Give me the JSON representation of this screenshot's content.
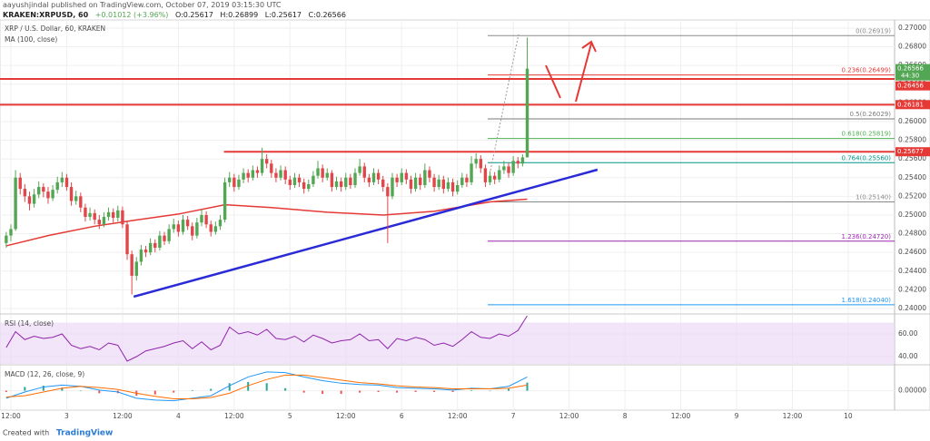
{
  "header": {
    "publisher": "aayushjindal published on TradingView.com, October 07, 2019 03:15:30 UTC",
    "symbol": "KRAKEN:XRPUSD, 60",
    "change": "+0.01012 (+3.96%)",
    "ohlc": [
      "O:0.25617",
      "H:0.26899",
      "L:0.25617",
      "C:0.26566"
    ]
  },
  "chart_data": [
    {
      "type": "candlestick",
      "title": "XRP / U.S. Dollar, 60, KRAKEN",
      "xlim": [
        9.66,
        201.97
      ],
      "ylim": [
        0.23951,
        0.27087
      ],
      "xticks": [
        {
          "value": 12,
          "label": "12:00"
        },
        {
          "value": 24,
          "label": "3"
        },
        {
          "value": 36,
          "label": "12:00"
        },
        {
          "value": 48,
          "label": "4"
        },
        {
          "value": 60,
          "label": "12:00"
        },
        {
          "value": 72,
          "label": "5"
        },
        {
          "value": 84,
          "label": "12:00"
        },
        {
          "value": 96,
          "label": "6"
        },
        {
          "value": 108,
          "label": "12:00"
        },
        {
          "value": 120,
          "label": "7"
        },
        {
          "value": 132,
          "label": "12:00"
        },
        {
          "value": 144,
          "label": "8"
        },
        {
          "value": 156,
          "label": "12:00"
        },
        {
          "value": 168,
          "label": "9"
        },
        {
          "value": 180,
          "label": "12:00"
        },
        {
          "value": 192,
          "label": "10"
        }
      ],
      "yticks": [
        {
          "value": 0.24,
          "label": "0.24000"
        },
        {
          "value": 0.242,
          "label": "0.24200"
        },
        {
          "value": 0.244,
          "label": "0.24400"
        },
        {
          "value": 0.246,
          "label": "0.24600"
        },
        {
          "value": 0.248,
          "label": "0.24800"
        },
        {
          "value": 0.25,
          "label": "0.25000"
        },
        {
          "value": 0.252,
          "label": "0.25200"
        },
        {
          "value": 0.254,
          "label": "0.25400"
        },
        {
          "value": 0.256,
          "label": "0.25600"
        },
        {
          "value": 0.258,
          "label": "0.25800"
        },
        {
          "value": 0.26,
          "label": "0.26000"
        },
        {
          "value": 0.262,
          "label": "0.26200"
        },
        {
          "value": 0.264,
          "label": "0.26400"
        },
        {
          "value": 0.266,
          "label": "0.26600"
        },
        {
          "value": 0.268,
          "label": "0.26800"
        },
        {
          "value": 0.27,
          "label": "0.27000"
        }
      ],
      "grid": true,
      "up_color": "#53a653",
      "down_color": "#e0464a",
      "x": [
        11,
        12,
        13,
        14,
        15,
        16,
        17,
        18,
        19,
        20,
        21,
        22,
        23,
        24,
        25,
        26,
        27,
        28,
        29,
        30,
        31,
        32,
        33,
        34,
        35,
        36,
        37,
        38,
        39,
        40,
        41,
        42,
        43,
        44,
        45,
        46,
        47,
        48,
        49,
        50,
        51,
        52,
        53,
        54,
        55,
        56,
        57,
        58,
        59,
        60,
        61,
        62,
        63,
        64,
        65,
        66,
        67,
        68,
        69,
        70,
        71,
        72,
        73,
        74,
        75,
        76,
        77,
        78,
        79,
        80,
        81,
        82,
        83,
        84,
        85,
        86,
        87,
        88,
        89,
        90,
        91,
        92,
        93,
        94,
        95,
        96,
        97,
        98,
        99,
        100,
        101,
        102,
        103,
        104,
        105,
        106,
        107,
        108,
        109,
        110,
        111,
        112,
        113,
        114,
        115,
        116,
        117,
        118,
        119,
        120,
        121,
        122,
        123
      ],
      "open": [
        0.247,
        0.2478,
        0.2485,
        0.254,
        0.2528,
        0.252,
        0.2512,
        0.2522,
        0.253,
        0.2525,
        0.2518,
        0.2527,
        0.2535,
        0.254,
        0.253,
        0.2515,
        0.252,
        0.2508,
        0.2498,
        0.2502,
        0.2495,
        0.249,
        0.2498,
        0.2503,
        0.2497,
        0.2505,
        0.249,
        0.2458,
        0.2435,
        0.245,
        0.2463,
        0.246,
        0.247,
        0.2465,
        0.2478,
        0.2472,
        0.2485,
        0.249,
        0.2482,
        0.2495,
        0.2488,
        0.2478,
        0.2492,
        0.25,
        0.249,
        0.2482,
        0.2488,
        0.2495,
        0.2535,
        0.254,
        0.253,
        0.2538,
        0.2545,
        0.254,
        0.2548,
        0.2545,
        0.256,
        0.2555,
        0.2545,
        0.254,
        0.2548,
        0.2538,
        0.2532,
        0.254,
        0.2535,
        0.2528,
        0.2533,
        0.2542,
        0.255,
        0.254,
        0.2545,
        0.253,
        0.2536,
        0.253,
        0.254,
        0.2532,
        0.2545,
        0.2552,
        0.254,
        0.2535,
        0.2545,
        0.2538,
        0.253,
        0.252,
        0.254,
        0.2535,
        0.2545,
        0.2538,
        0.2528,
        0.254,
        0.2532,
        0.2548,
        0.254,
        0.253,
        0.2538,
        0.2528,
        0.2535,
        0.2525,
        0.2532,
        0.254,
        0.2535,
        0.2555,
        0.256,
        0.255,
        0.2535,
        0.2542,
        0.2538,
        0.2548,
        0.2552,
        0.2545,
        0.2558,
        0.2555,
        0.25617
      ],
      "high": [
        0.2482,
        0.249,
        0.2548,
        0.2545,
        0.2533,
        0.2525,
        0.2528,
        0.2536,
        0.2534,
        0.253,
        0.2532,
        0.2541,
        0.2546,
        0.2544,
        0.2535,
        0.2526,
        0.2524,
        0.2512,
        0.2508,
        0.2506,
        0.25,
        0.2503,
        0.2508,
        0.2507,
        0.251,
        0.2509,
        0.2493,
        0.2462,
        0.2455,
        0.2468,
        0.2467,
        0.2475,
        0.2474,
        0.2483,
        0.2482,
        0.249,
        0.2496,
        0.2494,
        0.25,
        0.2499,
        0.2492,
        0.2497,
        0.2506,
        0.2504,
        0.2494,
        0.2493,
        0.25,
        0.254,
        0.2546,
        0.2544,
        0.2543,
        0.255,
        0.2549,
        0.2553,
        0.2552,
        0.2572,
        0.2565,
        0.2559,
        0.255,
        0.2553,
        0.2552,
        0.2542,
        0.2545,
        0.2544,
        0.2539,
        0.2538,
        0.2547,
        0.2558,
        0.2554,
        0.255,
        0.2548,
        0.2541,
        0.254,
        0.2545,
        0.2544,
        0.255,
        0.256,
        0.2556,
        0.2544,
        0.255,
        0.2549,
        0.2542,
        0.2534,
        0.2545,
        0.2544,
        0.255,
        0.2549,
        0.2542,
        0.2545,
        0.2544,
        0.2555,
        0.2552,
        0.2544,
        0.2543,
        0.2542,
        0.254,
        0.2539,
        0.2537,
        0.2545,
        0.2544,
        0.2563,
        0.2566,
        0.2564,
        0.2554,
        0.2547,
        0.2546,
        0.2553,
        0.2558,
        0.2556,
        0.2563,
        0.2562,
        0.2565,
        0.26899
      ],
      "low": [
        0.2465,
        0.2472,
        0.2483,
        0.2522,
        0.2514,
        0.2505,
        0.2508,
        0.2518,
        0.2519,
        0.2512,
        0.2515,
        0.2523,
        0.253,
        0.2526,
        0.251,
        0.2511,
        0.2503,
        0.2493,
        0.2494,
        0.249,
        0.2485,
        0.2487,
        0.2494,
        0.2492,
        0.2493,
        0.2486,
        0.2452,
        0.2415,
        0.243,
        0.2446,
        0.2455,
        0.2457,
        0.246,
        0.2462,
        0.2468,
        0.2469,
        0.2481,
        0.2477,
        0.2479,
        0.2484,
        0.2473,
        0.2475,
        0.2488,
        0.2486,
        0.2477,
        0.2479,
        0.2484,
        0.2492,
        0.253,
        0.2525,
        0.2527,
        0.2534,
        0.2535,
        0.2537,
        0.254,
        0.2542,
        0.255,
        0.254,
        0.2535,
        0.2537,
        0.2533,
        0.2527,
        0.2529,
        0.253,
        0.2523,
        0.2525,
        0.253,
        0.2539,
        0.2535,
        0.2537,
        0.2525,
        0.2527,
        0.2525,
        0.2527,
        0.2528,
        0.2529,
        0.2542,
        0.2535,
        0.253,
        0.2532,
        0.2533,
        0.2525,
        0.247,
        0.2517,
        0.253,
        0.2532,
        0.2533,
        0.2523,
        0.2525,
        0.2527,
        0.2529,
        0.2535,
        0.2525,
        0.2527,
        0.2523,
        0.2525,
        0.252,
        0.2522,
        0.2529,
        0.253,
        0.2532,
        0.255,
        0.2545,
        0.253,
        0.2532,
        0.2533,
        0.2535,
        0.2544,
        0.254,
        0.2542,
        0.255,
        0.2552,
        0.25617
      ],
      "close": [
        0.2478,
        0.2485,
        0.254,
        0.2528,
        0.252,
        0.2512,
        0.2522,
        0.253,
        0.2525,
        0.2518,
        0.2527,
        0.2535,
        0.254,
        0.253,
        0.2515,
        0.252,
        0.2508,
        0.2498,
        0.2502,
        0.2495,
        0.249,
        0.2498,
        0.2503,
        0.2497,
        0.2505,
        0.249,
        0.2458,
        0.2435,
        0.245,
        0.2463,
        0.246,
        0.247,
        0.2465,
        0.2478,
        0.2472,
        0.2485,
        0.249,
        0.2482,
        0.2495,
        0.2488,
        0.2478,
        0.2492,
        0.25,
        0.249,
        0.2482,
        0.2488,
        0.2495,
        0.2535,
        0.254,
        0.253,
        0.2538,
        0.2545,
        0.254,
        0.2548,
        0.2545,
        0.256,
        0.2555,
        0.2545,
        0.254,
        0.2548,
        0.2538,
        0.2532,
        0.254,
        0.2535,
        0.2528,
        0.2533,
        0.2542,
        0.255,
        0.254,
        0.2545,
        0.253,
        0.2536,
        0.253,
        0.254,
        0.2532,
        0.2545,
        0.2552,
        0.254,
        0.2535,
        0.2545,
        0.2538,
        0.253,
        0.252,
        0.254,
        0.2535,
        0.2545,
        0.2538,
        0.2528,
        0.254,
        0.2532,
        0.2548,
        0.254,
        0.253,
        0.2538,
        0.2528,
        0.2535,
        0.2525,
        0.2532,
        0.254,
        0.2535,
        0.2555,
        0.256,
        0.255,
        0.2535,
        0.2542,
        0.2538,
        0.2548,
        0.2552,
        0.2545,
        0.2558,
        0.2555,
        0.25617,
        0.26566
      ],
      "overlays": [
        {
          "name": "MA (100, close)",
          "color": "#e53935",
          "x": [
            11,
            20,
            30,
            38,
            48,
            58,
            68,
            80,
            92,
            103,
            115,
            123
          ],
          "values": [
            0.2467,
            0.2478,
            0.2488,
            0.2494,
            0.2501,
            0.2511,
            0.2508,
            0.2503,
            0.25,
            0.2504,
            0.2514,
            0.2517
          ]
        }
      ],
      "trendlines": [
        {
          "color": "#2a2ad6",
          "x": [
            38.4,
            138.1
          ],
          "values": [
            0.24126,
            0.25485
          ]
        }
      ],
      "levels": [
        {
          "value": 0.26456,
          "label": "0.26456",
          "color": "#e53935",
          "x": [
            9.66,
            201.97
          ]
        },
        {
          "value": 0.26181,
          "label": "0.26181",
          "color": "#e53935",
          "x": [
            9.66,
            201.97
          ]
        },
        {
          "value": 0.25677,
          "label": "0.25677",
          "color": "#e53935",
          "x": [
            57.8,
            201.97
          ]
        }
      ],
      "price_tag": {
        "value": 0.26566,
        "label": "0.26566",
        "countdown": "44:30",
        "color": "#53a653"
      },
      "fibonacci": {
        "x": [
          114.5,
          201.97
        ],
        "levels": [
          {
            "value": 0.26919,
            "label": "0(0.26919)",
            "color": "#8a8a8a"
          },
          {
            "value": 0.26499,
            "label": "0.236(0.26499)",
            "color": "#e53935"
          },
          {
            "value": 0.26029,
            "label": "0.5(0.26029)",
            "color": "#7a7a7a"
          },
          {
            "value": 0.25819,
            "label": "0.618(0.25819)",
            "color": "#4caf50"
          },
          {
            "value": 0.2556,
            "label": "0.764(0.25560)",
            "color": "#009688"
          },
          {
            "value": 0.2514,
            "label": "1(0.25140)",
            "color": "#8a8a8a"
          },
          {
            "value": 0.2472,
            "label": "1.236(0.24720)",
            "color": "#9c27b0"
          },
          {
            "value": 0.2404,
            "label": "1.618(0.24040)",
            "color": "#2196f3"
          }
        ]
      }
    },
    {
      "type": "line",
      "title": "RSI (14, close)",
      "color": "#8e24aa",
      "xlim": [
        9.66,
        201.97
      ],
      "ylim": [
        33.6,
        76.8
      ],
      "yticks": [
        {
          "value": 60,
          "label": "60.00"
        },
        {
          "value": 40,
          "label": "40.00"
        }
      ],
      "band": [
        30,
        70
      ],
      "band_color": "#ecd8f6",
      "x": [
        11,
        13,
        15,
        17,
        19,
        21,
        23,
        25,
        27,
        29,
        31,
        33,
        35,
        37,
        39,
        41,
        43,
        45,
        47,
        49,
        51,
        53,
        55,
        57,
        59,
        61,
        63,
        65,
        67,
        69,
        71,
        73,
        75,
        77,
        79,
        81,
        83,
        85,
        87,
        89,
        91,
        93,
        95,
        97,
        99,
        101,
        103,
        105,
        107,
        109,
        111,
        113,
        115,
        117,
        119,
        121,
        123
      ],
      "values": [
        48,
        62,
        55,
        58,
        56,
        57,
        60,
        50,
        47,
        49,
        46,
        52,
        50,
        36,
        40,
        45,
        47,
        49,
        52,
        54,
        47,
        53,
        46,
        50,
        66,
        60,
        62,
        59,
        64,
        56,
        55,
        58,
        53,
        59,
        56,
        52,
        54,
        55,
        60,
        54,
        55,
        47,
        56,
        54,
        57,
        55,
        50,
        52,
        49,
        55,
        62,
        57,
        56,
        60,
        58,
        63,
        76
      ]
    },
    {
      "type": "macd",
      "title": "MACD (12, 26, close, 9)",
      "xlim": [
        9.66,
        201.97
      ],
      "ylim": [
        -0.00296,
        0.004
      ],
      "yticks": [
        {
          "value": 0,
          "label": "0.00000"
        }
      ],
      "x": [
        11,
        15,
        19,
        23,
        27,
        31,
        35,
        39,
        43,
        47,
        51,
        55,
        59,
        63,
        67,
        71,
        75,
        79,
        83,
        87,
        91,
        95,
        99,
        103,
        107,
        111,
        115,
        119,
        123
      ],
      "series": [
        {
          "color": "#2196f3",
          "values": [
            -0.0012,
            -0.0002,
            0.0006,
            0.0009,
            0.0007,
            0.0001,
            -0.0002,
            -0.0012,
            -0.0015,
            -0.0016,
            -0.0012,
            -0.0008,
            0.0008,
            0.0022,
            0.003,
            0.0029,
            0.0022,
            0.0016,
            0.0012,
            0.001,
            0.0009,
            0.0005,
            0.0004,
            0.0003,
            0.0001,
            0.0004,
            0.0003,
            0.0007,
            0.0022
          ]
        },
        {
          "color": "#ff6d00",
          "values": [
            -0.001,
            -0.0008,
            -0.0002,
            0.0004,
            0.0007,
            0.0005,
            0.0002,
            -0.0004,
            -0.0009,
            -0.0013,
            -0.0013,
            -0.0011,
            -0.0004,
            0.0008,
            0.0018,
            0.0025,
            0.0025,
            0.0021,
            0.0017,
            0.0013,
            0.0011,
            0.0008,
            0.0006,
            0.0005,
            0.0003,
            0.0003,
            0.0003,
            0.0004,
            0.0009
          ]
        }
      ],
      "histogram": {
        "up_color": "#26a69a",
        "down_color": "#ef5350",
        "values": [
          -0.0002,
          0.0006,
          0.0008,
          0.0005,
          0,
          -0.0004,
          -0.0004,
          -0.0008,
          -0.0006,
          -0.0003,
          0.0001,
          0.0003,
          0.0012,
          0.0014,
          0.0012,
          0.0004,
          -0.0003,
          -0.0005,
          -0.0005,
          -0.0003,
          -0.0002,
          -0.0003,
          -0.0002,
          -0.0002,
          -0.0002,
          0.0001,
          0,
          0.0003,
          0.0013
        ]
      }
    }
  ],
  "footer": {
    "created": "Created with",
    "brand": "TradingView"
  }
}
